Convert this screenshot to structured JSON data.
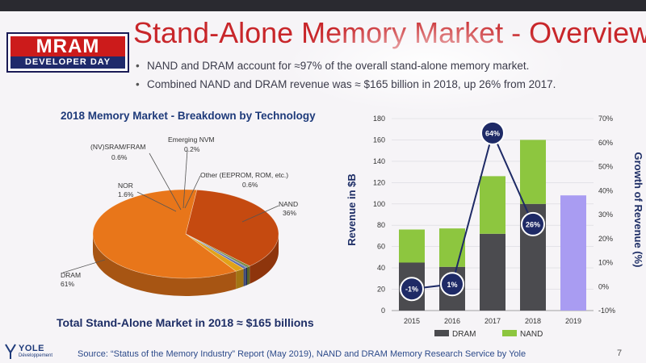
{
  "slide": {
    "title": "Stand-Alone Memory Market - Overview",
    "logo": {
      "top": "MRAM",
      "bottom": "DEVELOPER DAY"
    },
    "bullets": [
      "NAND and DRAM account for ≈97% of the overall stand-alone memory market.",
      "Combined NAND and DRAM revenue was ≈ $165 billion in 2018, up 26% from 2017."
    ],
    "total_text": "Total Stand-Alone Market in 2018 ≈ $165 billions",
    "footer": "Source: “Status of the Memory Industry” Report (May 2019), NAND and DRAM Memory Research Service by Yole",
    "page_number": "7",
    "yole_logo": {
      "name": "YOLE",
      "sub": "Développement"
    }
  },
  "colors": {
    "title_red": "#c8262a",
    "dram": "#e8761a",
    "nand": "#c54a10",
    "nor": "#e2a21a",
    "sram": "#5a6aa8",
    "emerging": "#1f2f6e",
    "other": "#7a8a3a",
    "bar_dram": "#4b4b4f",
    "bar_nand": "#8dc63f",
    "bar_2019": "#a99cf2",
    "growth_line": "#1e2a66"
  },
  "chart_data": [
    {
      "type": "pie",
      "title": "2018 Memory Market - Breakdown by Technology",
      "slices": [
        {
          "label": "DRAM",
          "value": 61,
          "display": "61%",
          "color": "#e8761a"
        },
        {
          "label": "NAND",
          "value": 36,
          "display": "36%",
          "color": "#c54a10"
        },
        {
          "label": "NOR",
          "value": 1.6,
          "display": "1.6%",
          "color": "#e2a21a"
        },
        {
          "label": "(NV)SRAM/FRAM",
          "value": 0.6,
          "display": "0.6%",
          "color": "#5a6aa8"
        },
        {
          "label": "Emerging NVM",
          "value": 0.2,
          "display": "0.2%",
          "color": "#1f2f6e"
        },
        {
          "label": "Other (EEPROM, ROM, etc.)",
          "value": 0.6,
          "display": "0.6%",
          "color": "#7a8a3a"
        }
      ]
    },
    {
      "type": "bar",
      "stacked": true,
      "categories": [
        "2015",
        "2016",
        "2017",
        "2018",
        "2019"
      ],
      "series": [
        {
          "name": "DRAM",
          "values": [
            45,
            41,
            72,
            100,
            null
          ],
          "color": "#4b4b4f"
        },
        {
          "name": "NAND",
          "values": [
            31,
            36,
            54,
            60,
            null
          ],
          "color": "#8dc63f"
        },
        {
          "name": "2019 total",
          "values": [
            null,
            null,
            null,
            null,
            108
          ],
          "color": "#a99cf2"
        }
      ],
      "growth": {
        "name": "Growth of Revenue (%)",
        "values": [
          -1,
          1,
          64,
          26
        ],
        "labels": [
          "-1%",
          "1%",
          "64%",
          "26%"
        ]
      },
      "ylabel": "Revenue in $B",
      "ylabel_right": "Growth of Revenue (%)",
      "ylim": [
        0,
        180
      ],
      "y_ticks": [
        "0",
        "20",
        "40",
        "60",
        "80",
        "100",
        "120",
        "140",
        "160",
        "180"
      ],
      "ylim_right": [
        -10,
        70
      ],
      "y2_ticks": [
        "-10%",
        "0%",
        "10%",
        "20%",
        "30%",
        "40%",
        "50%",
        "60%",
        "70%"
      ],
      "legend": [
        "DRAM",
        "NAND"
      ]
    }
  ]
}
